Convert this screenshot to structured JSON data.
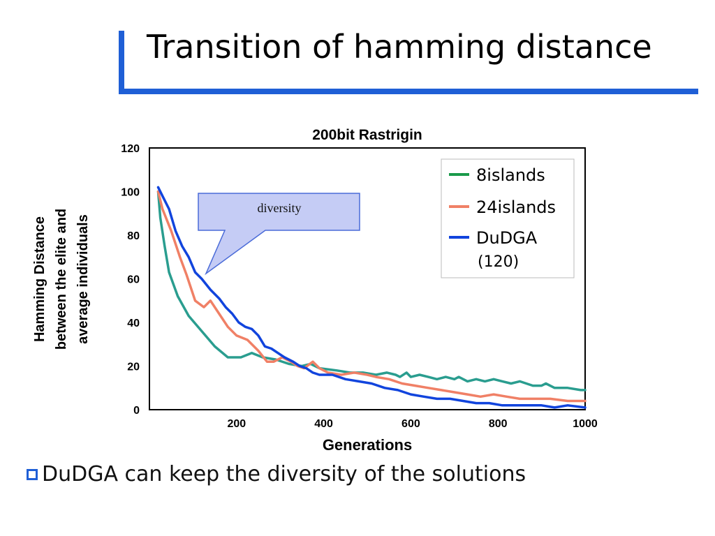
{
  "slide": {
    "title": "Transition of hamming distance",
    "bullet": "DuDGA can keep the diversity of the solutions",
    "accent_color": "#1f5fd6",
    "bullet_icon": "hollow-square-icon"
  },
  "callout": {
    "text": "diversity",
    "fill": "#c5ccf5",
    "stroke": "#4a6bd8"
  },
  "chart_data": {
    "type": "line",
    "title": "200bit Rastrigin",
    "xlabel": "Generations",
    "ylabel_lines": [
      "Hamming Distance",
      "between the elite and",
      "average individuals"
    ],
    "xlim": [
      0,
      1000
    ],
    "ylim": [
      0,
      120
    ],
    "x_ticks": [
      "200",
      "400",
      "600",
      "800",
      "1000"
    ],
    "y_ticks": [
      "0",
      "20",
      "40",
      "60",
      "80",
      "100",
      "120"
    ],
    "grid": false,
    "legend_position": "top-right",
    "legend": [
      {
        "label": "8islands",
        "color": "#1a9a4a"
      },
      {
        "label": "24islands",
        "color": "#f08066"
      },
      {
        "label": "DuDGA",
        "label2": "(120)",
        "color": "#1144dd"
      }
    ],
    "series": [
      {
        "name": "8islands",
        "color": "#2a9d8f",
        "points": [
          [
            20,
            100
          ],
          [
            25,
            88
          ],
          [
            35,
            75
          ],
          [
            45,
            63
          ],
          [
            65,
            52
          ],
          [
            90,
            43
          ],
          [
            120,
            36
          ],
          [
            150,
            29
          ],
          [
            180,
            24
          ],
          [
            210,
            24
          ],
          [
            235,
            26
          ],
          [
            260,
            24
          ],
          [
            290,
            23
          ],
          [
            320,
            21
          ],
          [
            350,
            20
          ],
          [
            370,
            21
          ],
          [
            390,
            19
          ],
          [
            430,
            18
          ],
          [
            460,
            17
          ],
          [
            490,
            17
          ],
          [
            520,
            16
          ],
          [
            545,
            17
          ],
          [
            565,
            16
          ],
          [
            575,
            15
          ],
          [
            590,
            17
          ],
          [
            600,
            15
          ],
          [
            620,
            16
          ],
          [
            640,
            15
          ],
          [
            660,
            14
          ],
          [
            680,
            15
          ],
          [
            700,
            14
          ],
          [
            710,
            15
          ],
          [
            730,
            13
          ],
          [
            750,
            14
          ],
          [
            770,
            13
          ],
          [
            790,
            14
          ],
          [
            810,
            13
          ],
          [
            830,
            12
          ],
          [
            850,
            13
          ],
          [
            880,
            11
          ],
          [
            900,
            11
          ],
          [
            910,
            12
          ],
          [
            930,
            10
          ],
          [
            960,
            10
          ],
          [
            990,
            9
          ],
          [
            1000,
            9
          ]
        ]
      },
      {
        "name": "24islands",
        "color": "#f08066",
        "points": [
          [
            20,
            100
          ],
          [
            30,
            92
          ],
          [
            50,
            82
          ],
          [
            70,
            70
          ],
          [
            85,
            62
          ],
          [
            105,
            50
          ],
          [
            125,
            47
          ],
          [
            140,
            50
          ],
          [
            160,
            44
          ],
          [
            180,
            38
          ],
          [
            200,
            34
          ],
          [
            225,
            32
          ],
          [
            250,
            27
          ],
          [
            270,
            22
          ],
          [
            285,
            22
          ],
          [
            305,
            24
          ],
          [
            325,
            22
          ],
          [
            340,
            20
          ],
          [
            355,
            19
          ],
          [
            375,
            22
          ],
          [
            390,
            19
          ],
          [
            410,
            17
          ],
          [
            440,
            16
          ],
          [
            470,
            17
          ],
          [
            500,
            16
          ],
          [
            520,
            15
          ],
          [
            550,
            14
          ],
          [
            580,
            12
          ],
          [
            610,
            11
          ],
          [
            640,
            10
          ],
          [
            670,
            9
          ],
          [
            700,
            8
          ],
          [
            730,
            7
          ],
          [
            760,
            6
          ],
          [
            790,
            7
          ],
          [
            820,
            6
          ],
          [
            850,
            5
          ],
          [
            880,
            5
          ],
          [
            920,
            5
          ],
          [
            960,
            4
          ],
          [
            1000,
            4
          ]
        ]
      },
      {
        "name": "DuDGA (120)",
        "color": "#1144dd",
        "points": [
          [
            20,
            102
          ],
          [
            30,
            98
          ],
          [
            45,
            92
          ],
          [
            60,
            82
          ],
          [
            75,
            75
          ],
          [
            90,
            70
          ],
          [
            105,
            63
          ],
          [
            120,
            60
          ],
          [
            140,
            55
          ],
          [
            160,
            51
          ],
          [
            175,
            47
          ],
          [
            190,
            44
          ],
          [
            205,
            40
          ],
          [
            220,
            38
          ],
          [
            235,
            37
          ],
          [
            250,
            34
          ],
          [
            265,
            29
          ],
          [
            280,
            28
          ],
          [
            295,
            26
          ],
          [
            310,
            24
          ],
          [
            330,
            22
          ],
          [
            345,
            20
          ],
          [
            360,
            19
          ],
          [
            375,
            17
          ],
          [
            390,
            16
          ],
          [
            420,
            16
          ],
          [
            450,
            14
          ],
          [
            480,
            13
          ],
          [
            510,
            12
          ],
          [
            540,
            10
          ],
          [
            570,
            9
          ],
          [
            600,
            7
          ],
          [
            630,
            6
          ],
          [
            660,
            5
          ],
          [
            690,
            5
          ],
          [
            720,
            4
          ],
          [
            750,
            3
          ],
          [
            780,
            3
          ],
          [
            810,
            2
          ],
          [
            840,
            2
          ],
          [
            870,
            2
          ],
          [
            900,
            2
          ],
          [
            930,
            1
          ],
          [
            960,
            2
          ],
          [
            1000,
            1
          ]
        ]
      }
    ]
  }
}
